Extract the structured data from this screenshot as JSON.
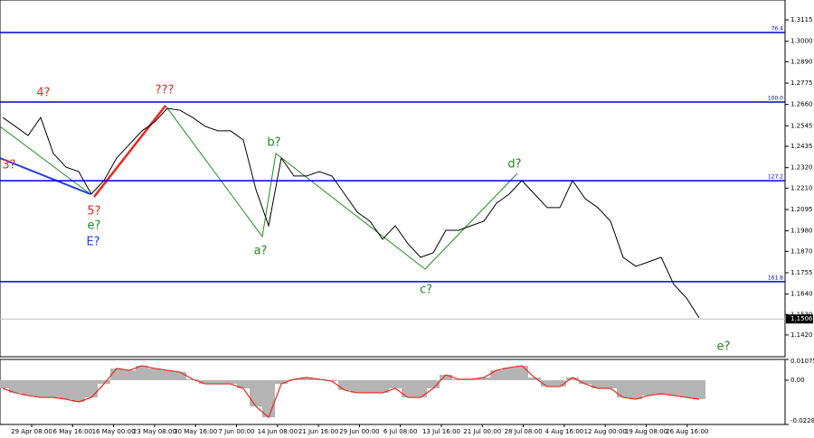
{
  "chart_data": [
    {
      "type": "line",
      "color": "#000000",
      "values": [
        1.259,
        1.2542,
        1.2493,
        1.259,
        1.2396,
        1.2323,
        1.2299,
        1.2178,
        1.2251,
        1.2372,
        1.2445,
        1.2518,
        1.2566,
        1.2639,
        1.2629,
        1.259,
        1.2542,
        1.2518,
        1.2518,
        1.2469,
        1.2202,
        1.2008,
        1.2372,
        1.2275,
        1.2275,
        1.2299,
        1.2275,
        1.2178,
        1.2081,
        1.2032,
        1.1935,
        1.2008,
        1.1911,
        1.1838,
        1.1862,
        1.1983,
        1.1983,
        1.2008,
        1.2032,
        1.2129,
        1.2178,
        1.2251,
        1.2178,
        1.2105,
        1.2105,
        1.2251,
        1.2153,
        1.2105,
        1.2032,
        1.1838,
        1.1789,
        1.1813,
        1.1838,
        1.1692,
        1.1619,
        1.1512
      ],
      "ylim": [
        1.1303,
        1.3222
      ],
      "yticks": [
        1.3115,
        {
          "value": 1.3,
          "label": "1.3000"
        },
        {
          "value": 1.289,
          "label": "1.2890"
        },
        1.2775,
        {
          "value": 1.266,
          "label": "1.2660"
        },
        1.2545,
        1.2435,
        {
          "value": 1.232,
          "label": "1.2320"
        },
        {
          "value": 1.221,
          "label": "1.2210"
        },
        1.2095,
        {
          "value": 1.198,
          "label": "1.1980"
        },
        {
          "value": 1.187,
          "label": "1.1870"
        },
        1.1755,
        {
          "value": 1.164,
          "label": "1.1640"
        },
        {
          "value": 1.153,
          "label": "1.1530"
        },
        {
          "value": 1.142,
          "label": "1.1420"
        }
      ],
      "last_price": 1.1506,
      "levels": [
        {
          "label": "76.4",
          "value": 1.3047
        },
        {
          "label": "100.0",
          "value": 1.2673
        },
        {
          "label": "127.2",
          "value": 1.225
        },
        {
          "label": "161.8",
          "value": 1.1707
        }
      ],
      "level_color": "#0000cd",
      "x_labels": [
        "29 Apr 08:00",
        "6 May 16:00",
        "16 May 00:00",
        "23 May 08:00",
        "30 May 16:00",
        "7 Jun 00:00",
        "14 Jun 08:00",
        "21 Jun 16:00",
        "29 Jun 00:00",
        "6 Jul 08:00",
        "13 Jul 16:00",
        "21 Jul 00:00",
        "28 Jul 08:00",
        "4 Aug 16:00",
        "12 Aug 00:00",
        "19 Aug 08:00",
        "26 Aug 16:00"
      ],
      "annotations": [
        {
          "text": "4?",
          "color": "#e8281e"
        },
        {
          "text": "???",
          "color": "#e8281e"
        },
        {
          "text": "3?",
          "color": "#e8281e"
        },
        {
          "text": "5?",
          "color": "#e8281e"
        },
        {
          "text": "e?",
          "color": "#1e8c1e"
        },
        {
          "text": "E?",
          "color": "#1e3ce8"
        },
        {
          "text": "b?",
          "color": "#1e8c1e"
        },
        {
          "text": "a?",
          "color": "#1e8c1e"
        },
        {
          "text": "c?",
          "color": "#1e8c1e"
        },
        {
          "text": "d?",
          "color": "#1e8c1e"
        },
        {
          "text": "e?",
          "color": "#1e8c1e"
        }
      ]
    },
    {
      "type": "bar",
      "color": "#b4b4b4",
      "line_color": "#e8281e",
      "values": [
        -0.0042,
        -0.0065,
        -0.0079,
        -0.0089,
        -0.0089,
        -0.0098,
        -0.0112,
        -0.0089,
        -0.0019,
        0.0061,
        0.0051,
        0.0075,
        0.0061,
        0.0051,
        0.0042,
        0.0005,
        -0.0019,
        -0.0019,
        -0.0019,
        -0.0042,
        -0.0136,
        -0.0192,
        -0.0019,
        0.0005,
        0.0014,
        0.0005,
        -0.0005,
        -0.0051,
        -0.0065,
        -0.0065,
        -0.0065,
        -0.0042,
        -0.0089,
        -0.0089,
        -0.0042,
        0.0028,
        0.0005,
        0.0005,
        0.0014,
        0.0051,
        0.0065,
        0.0075,
        0.0014,
        -0.0033,
        -0.0033,
        0.0014,
        -0.0019,
        -0.0042,
        -0.0042,
        -0.0089,
        -0.0098,
        -0.0079,
        -0.007,
        -0.0079,
        -0.0089,
        -0.0098
      ],
      "ylim": [
        -0.02289,
        0.01075
      ],
      "yticks": [
        0.01075,
        {
          "value": 0,
          "label": "0.00"
        },
        -0.02289
      ]
    }
  ]
}
